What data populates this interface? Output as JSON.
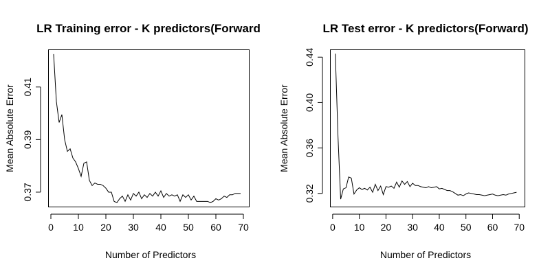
{
  "chart_data": [
    {
      "type": "line",
      "title": "LR Training error - K predictors(Forward",
      "xlabel": "Number of Predictors",
      "ylabel": "Mean Absolute Error",
      "xlim": [
        -1,
        72
      ],
      "ylim": [
        0.3645,
        0.4243
      ],
      "xticks": [
        0,
        10,
        20,
        30,
        40,
        50,
        60,
        70
      ],
      "yticks": [
        0.37,
        0.39,
        0.41
      ],
      "ytick_labels": [
        "0.37",
        "0.39",
        "0.41"
      ],
      "grid": false,
      "series": [
        {
          "x": [
            1,
            2,
            3,
            4,
            5,
            6,
            7,
            8,
            9,
            10,
            11,
            12,
            13,
            14,
            15,
            16,
            17,
            18,
            19,
            20,
            21,
            22,
            23,
            24,
            25,
            26,
            27,
            28,
            29,
            30,
            31,
            32,
            33,
            34,
            35,
            36,
            37,
            38,
            39,
            40,
            41,
            42,
            43,
            44,
            45,
            46,
            47,
            48,
            49,
            50,
            51,
            52,
            53,
            54,
            55,
            56,
            57,
            58,
            59,
            60,
            61,
            62,
            63,
            64,
            65,
            66,
            67,
            68,
            69
          ],
          "y": [
            0.4225,
            0.4045,
            0.3965,
            0.3995,
            0.39,
            0.3855,
            0.3865,
            0.383,
            0.3815,
            0.379,
            0.376,
            0.381,
            0.3815,
            0.3745,
            0.3725,
            0.3735,
            0.373,
            0.373,
            0.3725,
            0.3715,
            0.37,
            0.37,
            0.3665,
            0.366,
            0.3675,
            0.3685,
            0.3665,
            0.369,
            0.367,
            0.3695,
            0.3685,
            0.37,
            0.3675,
            0.369,
            0.368,
            0.3695,
            0.3685,
            0.37,
            0.3685,
            0.3705,
            0.368,
            0.3695,
            0.3685,
            0.369,
            0.3685,
            0.369,
            0.3665,
            0.369,
            0.368,
            0.369,
            0.367,
            0.3685,
            0.3665,
            0.3665,
            0.3665,
            0.3665,
            0.3665,
            0.366,
            0.3665,
            0.3675,
            0.367,
            0.3675,
            0.3685,
            0.368,
            0.369,
            0.369,
            0.3695,
            0.3695,
            0.3695
          ]
        }
      ]
    },
    {
      "type": "line",
      "title": "LR Test error - K predictors(Forward)",
      "xlabel": "Number of Predictors",
      "ylabel": "Mean Absolute Error",
      "xlim": [
        -1,
        72
      ],
      "ylim": [
        0.3084,
        0.4468
      ],
      "xticks": [
        0,
        10,
        20,
        30,
        40,
        50,
        60,
        70
      ],
      "yticks": [
        0.32,
        0.36,
        0.4,
        0.44
      ],
      "ytick_labels": [
        "0.32",
        "0.36",
        "0.40",
        "0.44"
      ],
      "grid": false,
      "series": [
        {
          "x": [
            1,
            2,
            3,
            4,
            5,
            6,
            7,
            8,
            9,
            10,
            11,
            12,
            13,
            14,
            15,
            16,
            17,
            18,
            19,
            20,
            21,
            22,
            23,
            24,
            25,
            26,
            27,
            28,
            29,
            30,
            31,
            32,
            33,
            34,
            35,
            36,
            37,
            38,
            39,
            40,
            41,
            42,
            43,
            44,
            45,
            46,
            47,
            48,
            49,
            50,
            51,
            52,
            53,
            54,
            55,
            56,
            57,
            58,
            59,
            60,
            61,
            62,
            63,
            64,
            65,
            66,
            67,
            68,
            69
          ],
          "y": [
            0.443,
            0.37,
            0.315,
            0.324,
            0.325,
            0.3345,
            0.3335,
            0.3195,
            0.323,
            0.325,
            0.3235,
            0.3245,
            0.323,
            0.3255,
            0.321,
            0.328,
            0.3225,
            0.3265,
            0.319,
            0.326,
            0.3255,
            0.3265,
            0.3245,
            0.33,
            0.3255,
            0.331,
            0.328,
            0.3305,
            0.326,
            0.329,
            0.327,
            0.327,
            0.326,
            0.3255,
            0.325,
            0.326,
            0.325,
            0.3255,
            0.326,
            0.324,
            0.3245,
            0.3235,
            0.3225,
            0.3225,
            0.3215,
            0.32,
            0.3185,
            0.319,
            0.318,
            0.3195,
            0.3205,
            0.32,
            0.3195,
            0.319,
            0.319,
            0.3185,
            0.318,
            0.3185,
            0.319,
            0.3195,
            0.3185,
            0.318,
            0.3185,
            0.319,
            0.3185,
            0.3195,
            0.32,
            0.3205,
            0.321
          ]
        }
      ]
    }
  ]
}
